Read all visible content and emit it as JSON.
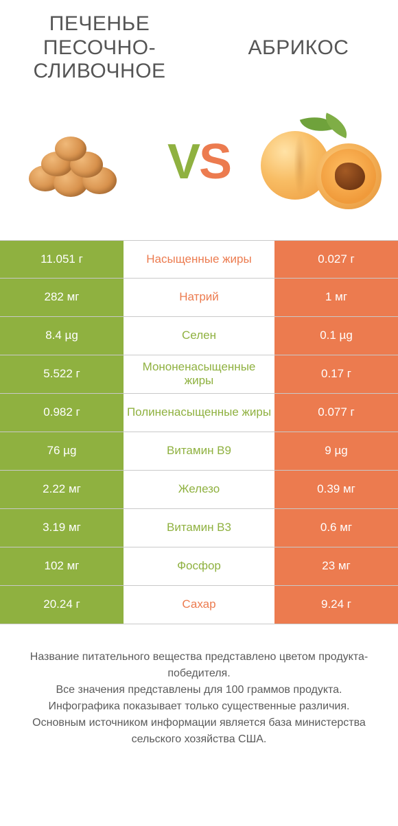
{
  "colors": {
    "left": "#8fb140",
    "right": "#ec7b4f",
    "vs_v": "#8fb140",
    "vs_s": "#ec7b4f",
    "text_body": "#555555"
  },
  "header": {
    "left_title": "ПЕЧЕНЬЕ ПЕСОЧНО-СЛИВОЧНОЕ",
    "right_title": "АБРИКОС",
    "vs_v": "V",
    "vs_s": "S"
  },
  "rows": [
    {
      "left": "11.051 г",
      "label": "Насыщенные жиры",
      "right": "0.027 г",
      "label_color": "right"
    },
    {
      "left": "282 мг",
      "label": "Натрий",
      "right": "1 мг",
      "label_color": "right"
    },
    {
      "left": "8.4 µg",
      "label": "Селен",
      "right": "0.1 µg",
      "label_color": "left"
    },
    {
      "left": "5.522 г",
      "label": "Мононенасыщенные жиры",
      "right": "0.17 г",
      "label_color": "left"
    },
    {
      "left": "0.982 г",
      "label": "Полиненасыщенные жиры",
      "right": "0.077 г",
      "label_color": "left"
    },
    {
      "left": "76 µg",
      "label": "Витамин B9",
      "right": "9 µg",
      "label_color": "left"
    },
    {
      "left": "2.22 мг",
      "label": "Железо",
      "right": "0.39 мг",
      "label_color": "left"
    },
    {
      "left": "3.19 мг",
      "label": "Витамин B3",
      "right": "0.6 мг",
      "label_color": "left"
    },
    {
      "left": "102 мг",
      "label": "Фосфор",
      "right": "23 мг",
      "label_color": "left"
    },
    {
      "left": "20.24 г",
      "label": "Сахар",
      "right": "9.24 г",
      "label_color": "right"
    }
  ],
  "footer": {
    "line1": "Название питательного вещества представлено цветом продукта-победителя.",
    "line2": "Все значения представлены для 100 граммов продукта.",
    "line3": "Инфографика показывает только существенные различия.",
    "line4": "Основным источником информации является база министерства сельского хозяйства США."
  }
}
